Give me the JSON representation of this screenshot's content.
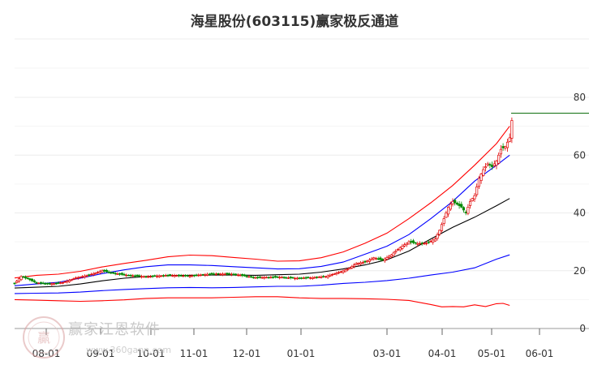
{
  "chart_data": {
    "type": "candlestick",
    "title": "海星股份(603115)赢家极反通道",
    "y_axis": {
      "ticks": [
        0,
        20,
        40,
        60,
        80
      ],
      "range": [
        0,
        80
      ],
      "position": "right",
      "grid": true
    },
    "x_axis": {
      "ticks": [
        "08-01",
        "09-01",
        "10-01",
        "11-01",
        "12-01",
        "01-01",
        "03-01",
        "04-01",
        "05-01",
        "06-01"
      ]
    },
    "current_level": 74.5,
    "series": [
      {
        "kind": "close",
        "color": "#cc0000",
        "values": [
          [
            0,
            15.6
          ],
          [
            3,
            18
          ],
          [
            6,
            17.2
          ],
          [
            10,
            15.8
          ],
          [
            16,
            15.4
          ],
          [
            22,
            15.9
          ],
          [
            28,
            17.5
          ],
          [
            34,
            18.5
          ],
          [
            40,
            20
          ],
          [
            46,
            19
          ],
          [
            52,
            18.4
          ],
          [
            60,
            17.9
          ],
          [
            70,
            18.4
          ],
          [
            80,
            18.2
          ],
          [
            90,
            18.9
          ],
          [
            100,
            18.8
          ],
          [
            110,
            17.6
          ],
          [
            120,
            17.8
          ],
          [
            128,
            17.4
          ],
          [
            136,
            17.6
          ],
          [
            142,
            18
          ],
          [
            148,
            19.4
          ],
          [
            152,
            20.5
          ],
          [
            156,
            22.5
          ],
          [
            160,
            23
          ],
          [
            164,
            24.5
          ],
          [
            168,
            23.6
          ],
          [
            172,
            25.5
          ],
          [
            176,
            28
          ],
          [
            180,
            30
          ],
          [
            184,
            29.4
          ],
          [
            188,
            29.5
          ],
          [
            192,
            31
          ],
          [
            194,
            34
          ],
          [
            196,
            38
          ],
          [
            198,
            42
          ],
          [
            200,
            44
          ],
          [
            202,
            43
          ],
          [
            204,
            42
          ],
          [
            206,
            40
          ],
          [
            208,
            44
          ],
          [
            210,
            46
          ],
          [
            212,
            52
          ],
          [
            214,
            55
          ],
          [
            216,
            57
          ],
          [
            218,
            56
          ],
          [
            220,
            58
          ],
          [
            222,
            62
          ],
          [
            224,
            63
          ],
          [
            226,
            66
          ],
          [
            227,
            72
          ]
        ]
      },
      {
        "kind": "upper_band",
        "color": "#ff0000",
        "values": [
          [
            0,
            17.5
          ],
          [
            10,
            18.4
          ],
          [
            20,
            18.8
          ],
          [
            30,
            19.8
          ],
          [
            40,
            21.3
          ],
          [
            50,
            22.5
          ],
          [
            60,
            23.6
          ],
          [
            70,
            24.8
          ],
          [
            80,
            25.4
          ],
          [
            90,
            25.2
          ],
          [
            100,
            24.6
          ],
          [
            110,
            24
          ],
          [
            120,
            23.3
          ],
          [
            130,
            23.4
          ],
          [
            140,
            24.5
          ],
          [
            150,
            26.5
          ],
          [
            160,
            29.5
          ],
          [
            170,
            33
          ],
          [
            180,
            38
          ],
          [
            190,
            43.5
          ],
          [
            200,
            49.5
          ],
          [
            210,
            56.5
          ],
          [
            220,
            64
          ],
          [
            226,
            70
          ]
        ]
      },
      {
        "kind": "mid_upper_band",
        "color": "#0000ff",
        "values": [
          [
            0,
            14.8
          ],
          [
            10,
            15.4
          ],
          [
            20,
            16
          ],
          [
            30,
            17.4
          ],
          [
            40,
            19
          ],
          [
            50,
            20.3
          ],
          [
            60,
            21.4
          ],
          [
            70,
            22
          ],
          [
            80,
            22
          ],
          [
            90,
            21.8
          ],
          [
            100,
            21.4
          ],
          [
            110,
            21
          ],
          [
            120,
            20.6
          ],
          [
            130,
            20.7
          ],
          [
            140,
            21.5
          ],
          [
            150,
            23
          ],
          [
            160,
            25.7
          ],
          [
            170,
            28.5
          ],
          [
            180,
            32.5
          ],
          [
            190,
            38
          ],
          [
            200,
            44
          ],
          [
            210,
            51
          ],
          [
            220,
            56.5
          ],
          [
            226,
            60
          ]
        ]
      },
      {
        "kind": "mid_band",
        "color": "#000000",
        "values": [
          [
            0,
            14
          ],
          [
            10,
            14.3
          ],
          [
            20,
            14.6
          ],
          [
            30,
            15.4
          ],
          [
            40,
            16.5
          ],
          [
            50,
            17.4
          ],
          [
            60,
            18
          ],
          [
            70,
            18.3
          ],
          [
            80,
            18.4
          ],
          [
            90,
            18.5
          ],
          [
            100,
            18.5
          ],
          [
            110,
            18.4
          ],
          [
            120,
            18.6
          ],
          [
            130,
            18.8
          ],
          [
            140,
            19.5
          ],
          [
            150,
            20.6
          ],
          [
            160,
            22
          ],
          [
            170,
            23.8
          ],
          [
            180,
            26.8
          ],
          [
            190,
            31
          ],
          [
            200,
            35
          ],
          [
            210,
            38.5
          ],
          [
            220,
            42.5
          ],
          [
            226,
            45
          ]
        ]
      },
      {
        "kind": "mid_lower_band",
        "color": "#0000ff",
        "values": [
          [
            0,
            12.1
          ],
          [
            10,
            12.2
          ],
          [
            20,
            12.3
          ],
          [
            30,
            12.6
          ],
          [
            40,
            13.1
          ],
          [
            50,
            13.5
          ],
          [
            60,
            13.8
          ],
          [
            70,
            14.1
          ],
          [
            80,
            14.2
          ],
          [
            90,
            14.1
          ],
          [
            100,
            14.2
          ],
          [
            110,
            14.4
          ],
          [
            120,
            14.6
          ],
          [
            130,
            14.6
          ],
          [
            140,
            15
          ],
          [
            150,
            15.6
          ],
          [
            160,
            16
          ],
          [
            170,
            16.6
          ],
          [
            180,
            17.4
          ],
          [
            190,
            18.5
          ],
          [
            200,
            19.5
          ],
          [
            210,
            21
          ],
          [
            220,
            24
          ],
          [
            226,
            25.5
          ]
        ]
      },
      {
        "kind": "lower_band",
        "color": "#ff0000",
        "values": [
          [
            0,
            10
          ],
          [
            10,
            9.8
          ],
          [
            20,
            9.6
          ],
          [
            30,
            9.4
          ],
          [
            40,
            9.6
          ],
          [
            50,
            9.9
          ],
          [
            60,
            10.4
          ],
          [
            70,
            10.6
          ],
          [
            80,
            10.6
          ],
          [
            90,
            10.6
          ],
          [
            100,
            10.8
          ],
          [
            110,
            11
          ],
          [
            120,
            11
          ],
          [
            130,
            10.6
          ],
          [
            140,
            10.4
          ],
          [
            150,
            10.4
          ],
          [
            160,
            10.3
          ],
          [
            170,
            10.1
          ],
          [
            180,
            9.7
          ],
          [
            190,
            8.3
          ],
          [
            195,
            7.5
          ],
          [
            200,
            7.6
          ],
          [
            205,
            7.5
          ],
          [
            210,
            8.2
          ],
          [
            215,
            7.6
          ],
          [
            220,
            8.6
          ],
          [
            223,
            8.7
          ],
          [
            226,
            8
          ]
        ]
      }
    ]
  },
  "watermark": {
    "brand": "赢家江恩软件",
    "url": "www.360gann.com"
  }
}
